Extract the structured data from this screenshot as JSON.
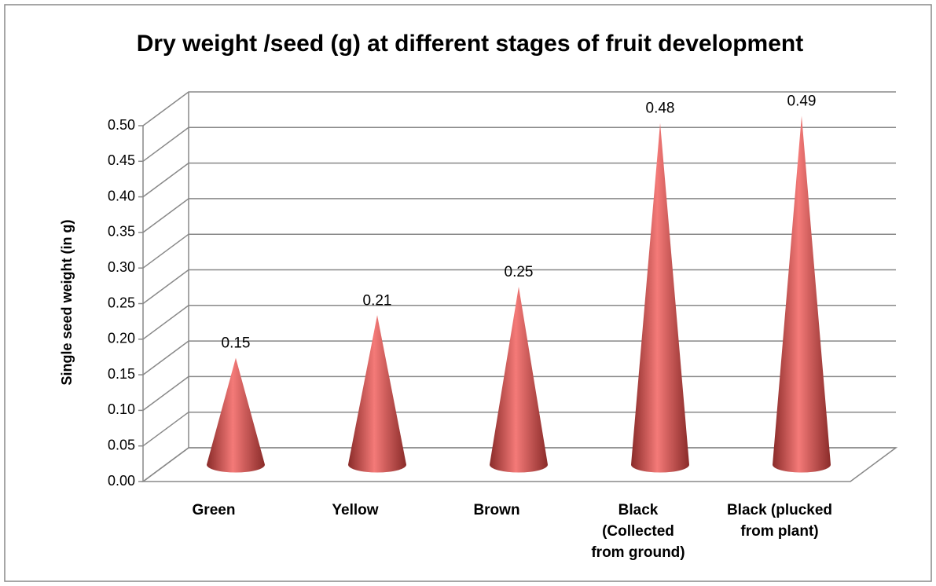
{
  "chart_data": {
    "type": "cone",
    "title": "Dry weight /seed (g) at different stages of fruit development",
    "y_label": "Single seed weight (in g)",
    "categories": [
      "Green",
      "Yellow",
      "Brown",
      "Black (Collected from ground)",
      "Black (plucked from plant)"
    ],
    "values": [
      0.15,
      0.21,
      0.25,
      0.48,
      0.49
    ],
    "color": "#c0504d",
    "ylim": [
      0,
      0.5
    ],
    "yticks": [
      {
        "value": 0,
        "label": "0.00"
      },
      0.05,
      {
        "value": 0.1,
        "label": "0.10"
      },
      0.15,
      {
        "value": 0.2,
        "label": "0.20"
      },
      0.25,
      {
        "value": 0.3,
        "label": "0.30"
      },
      0.35,
      {
        "value": 0.4,
        "label": "0.40"
      },
      0.45,
      {
        "value": 0.5,
        "label": "0.50"
      }
    ],
    "grid": true
  }
}
